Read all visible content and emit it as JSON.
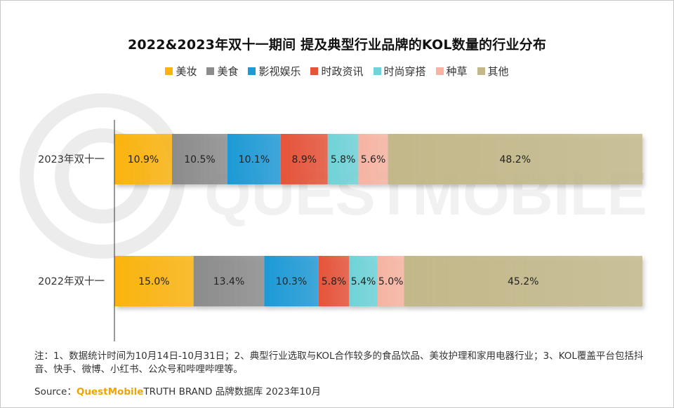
{
  "title": "2022&2023年双十一期间 提及典型行业品牌的KOL数量的行业分布",
  "watermark": "QUESTMOBILE",
  "chart_data": {
    "type": "bar",
    "orientation": "horizontal",
    "stacked": true,
    "percent": true,
    "categories": [
      "2023年双十一",
      "2022年双十一"
    ],
    "series": [
      {
        "name": "美妆",
        "color": "#fbb40f",
        "values": [
          10.9,
          15.0
        ]
      },
      {
        "name": "美食",
        "color": "#8c8c8c",
        "values": [
          10.5,
          13.4
        ]
      },
      {
        "name": "影视娱乐",
        "color": "#1e9ad6",
        "values": [
          10.1,
          10.3
        ]
      },
      {
        "name": "时政资讯",
        "color": "#e6533a",
        "values": [
          8.9,
          5.8
        ]
      },
      {
        "name": "时尚穿搭",
        "color": "#6fd3d8",
        "values": [
          5.8,
          5.4
        ]
      },
      {
        "name": "种草",
        "color": "#f7b4a2",
        "values": [
          5.6,
          5.0
        ]
      },
      {
        "name": "其他",
        "color": "#c3b88a",
        "values": [
          48.2,
          45.2
        ]
      }
    ],
    "data_labels": [
      [
        "10.9%",
        "10.5%",
        "10.1%",
        "8.9%",
        "5.8%",
        "5.6%",
        "48.2%"
      ],
      [
        "15.0%",
        "13.4%",
        "10.3%",
        "5.8%",
        "5.4%",
        "5.0%",
        "45.2%"
      ]
    ],
    "legend_position": "top",
    "grid": false
  },
  "note": "注：1、数据统计时间为10月14日-10月31日；2、典型行业选取与KOL合作较多的食品饮品、美妆护理和家用电器行业；3、KOL覆盖平台包括抖音、快手、微博、小红书、公众号和哔哩哔哩等。",
  "source": {
    "label": "Source：",
    "brand": "QuestMobile",
    "rest": " TRUTH BRAND 品牌数据库 2023年10月"
  }
}
